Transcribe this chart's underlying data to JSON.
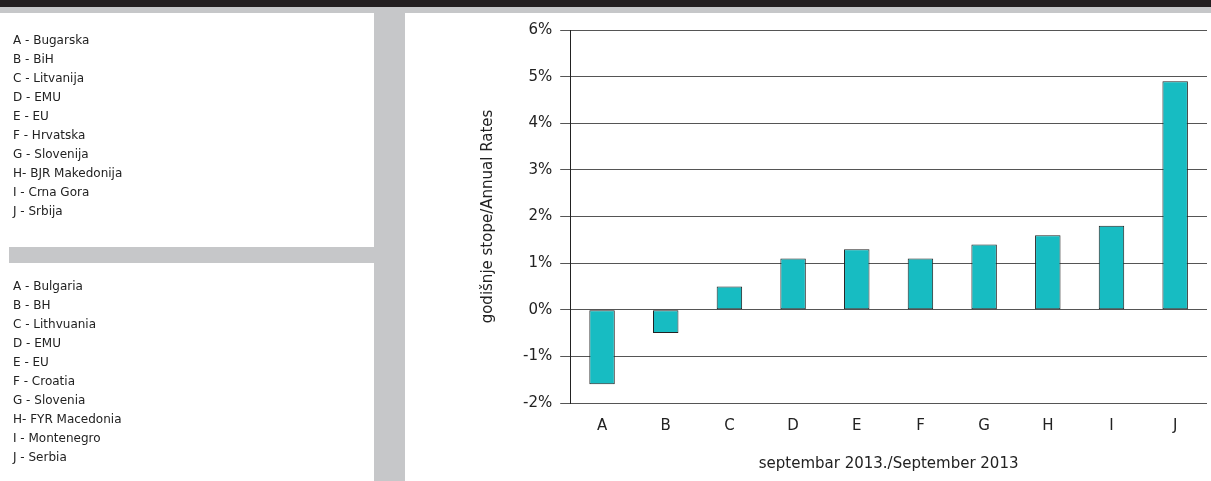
{
  "chart_data": {
    "type": "bar",
    "xlabel": "septembar 2013./September 2013",
    "ylabel": "godišnje stope/Annual Rates",
    "categories": [
      "A",
      "B",
      "C",
      "D",
      "E",
      "F",
      "G",
      "H",
      "I",
      "J"
    ],
    "values": [
      -1.6,
      -0.5,
      0.5,
      1.1,
      1.3,
      1.1,
      1.4,
      1.6,
      1.8,
      4.9
    ],
    "color": "#17bcc2",
    "ylim": [
      -2,
      6
    ],
    "yticks": [
      {
        "value": -2,
        "label": "-2%"
      },
      {
        "value": -1,
        "label": "-1%"
      },
      {
        "value": 0,
        "label": "0%"
      },
      {
        "value": 1,
        "label": "1%"
      },
      {
        "value": 2,
        "label": "2%"
      },
      {
        "value": 3,
        "label": "3%"
      },
      {
        "value": 4,
        "label": "4%"
      },
      {
        "value": 5,
        "label": "5%"
      },
      {
        "value": 6,
        "label": "6%"
      }
    ],
    "grid": "y",
    "legend": false,
    "annotations": [
      "A - Bugarska\nB - BiH\nC - Litvanija\nD - EMU\nE - EU\nF - Hrvatska\nG - Slovenija\nH- BJR Makedonija\nI - Crna Gora\nJ - Srbija",
      "A - Bulgaria\nB - BH\nC - Lithvuania\nD - EMU\nE - EU\nF - Croatia\nG - Slovenia\nH- FYR Macedonia\nI - Montenegro\nJ - Serbia"
    ]
  }
}
